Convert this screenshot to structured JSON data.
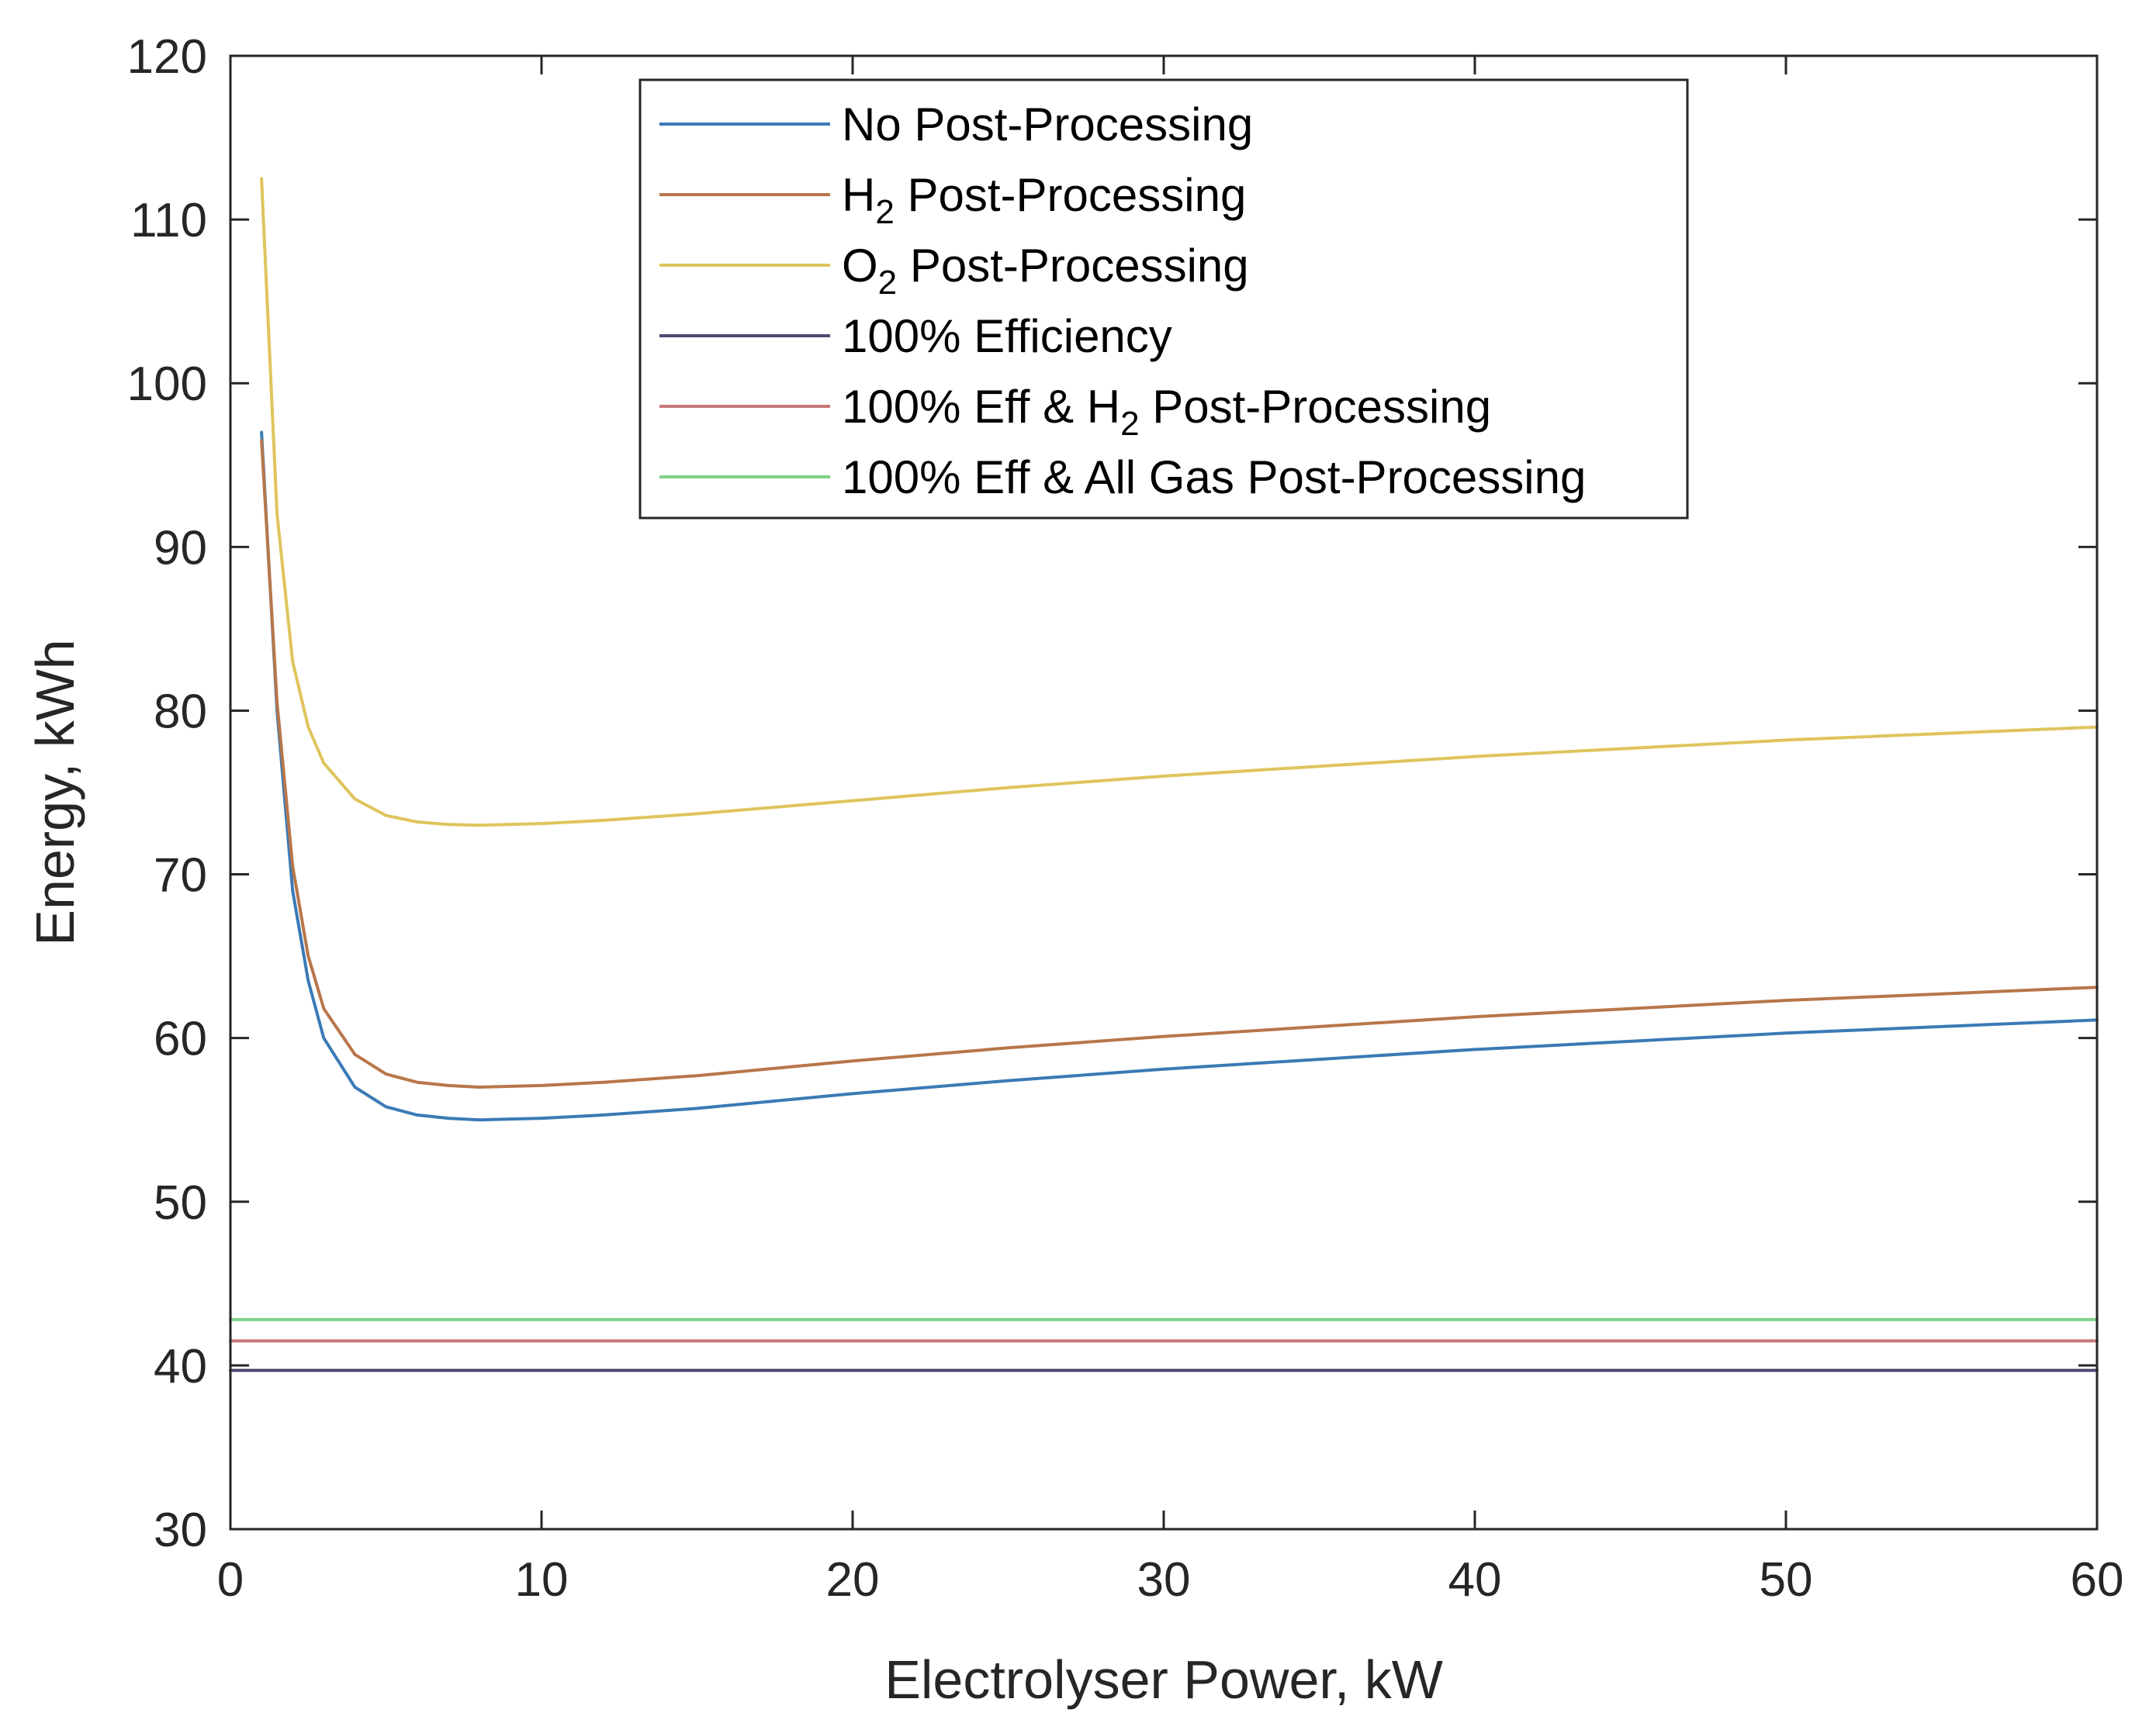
{
  "chart_data": {
    "type": "line",
    "xlabel": "Electrolyser Power, kW",
    "ylabel": "Energy, kWh",
    "xlim": [
      0,
      60
    ],
    "ylim": [
      30,
      120
    ],
    "xticks": [
      0,
      10,
      20,
      30,
      40,
      50,
      60
    ],
    "yticks": [
      30,
      40,
      50,
      60,
      70,
      80,
      90,
      100,
      110,
      120
    ],
    "grid": false,
    "legend_position": "top-center",
    "series": [
      {
        "name": "No Post-Processing",
        "legend": {
          "pre": "No Post-Processing",
          "sub": "",
          "post": ""
        },
        "color": "#3a7ab6",
        "x": [
          1,
          1.5,
          2,
          2.5,
          3,
          4,
          5,
          6,
          7,
          8,
          10,
          12,
          15,
          20,
          25,
          30,
          35,
          40,
          45,
          50,
          55,
          60
        ],
        "y": [
          97,
          80,
          69,
          63.5,
          60,
          57,
          55.8,
          55.3,
          55.1,
          55,
          55.1,
          55.3,
          55.7,
          56.6,
          57.4,
          58.1,
          58.7,
          59.3,
          59.8,
          60.3,
          60.7,
          61.1
        ]
      },
      {
        "name": "H2 Post-Processing",
        "legend": {
          "pre": "H",
          "sub": "2",
          "post": " Post-Processing"
        },
        "color": "#b8764a",
        "x": [
          1,
          1.5,
          2,
          2.5,
          3,
          4,
          5,
          6,
          7,
          8,
          10,
          12,
          15,
          20,
          25,
          30,
          35,
          40,
          45,
          50,
          55,
          60
        ],
        "y": [
          96.5,
          80.5,
          70.5,
          65,
          61.8,
          59,
          57.8,
          57.3,
          57.1,
          57,
          57.1,
          57.3,
          57.7,
          58.6,
          59.4,
          60.1,
          60.7,
          61.3,
          61.8,
          62.3,
          62.7,
          63.1
        ]
      },
      {
        "name": "O2 Post-Processing",
        "legend": {
          "pre": "O",
          "sub": "2",
          "post": " Post-Processing"
        },
        "color": "#e0c45c",
        "x": [
          1,
          1.5,
          2,
          2.5,
          3,
          4,
          5,
          6,
          7,
          8,
          10,
          12,
          15,
          20,
          25,
          30,
          35,
          40,
          45,
          50,
          55,
          60
        ],
        "y": [
          112.5,
          92,
          83,
          79,
          76.8,
          74.6,
          73.6,
          73.2,
          73.05,
          73,
          73.1,
          73.3,
          73.7,
          74.5,
          75.3,
          76,
          76.6,
          77.2,
          77.7,
          78.2,
          78.6,
          79
        ]
      },
      {
        "name": "100% Efficiency",
        "legend": {
          "pre": "100% Efficiency",
          "sub": "",
          "post": ""
        },
        "color": "#4d4a73",
        "x": [
          0,
          60
        ],
        "y": [
          39.7,
          39.7
        ]
      },
      {
        "name": "100% Eff & H2 Post-Processing",
        "legend": {
          "pre": "100% Eff & H",
          "sub": "2",
          "post": " Post-Processing"
        },
        "color": "#c87878",
        "x": [
          0,
          60
        ],
        "y": [
          41.5,
          41.5
        ]
      },
      {
        "name": "100% Eff & All Gas Post-Processing",
        "legend": {
          "pre": "100% Eff & All Gas Post-Processing",
          "sub": "",
          "post": ""
        },
        "color": "#7fd28a",
        "x": [
          0,
          60
        ],
        "y": [
          42.8,
          42.8
        ]
      }
    ]
  }
}
